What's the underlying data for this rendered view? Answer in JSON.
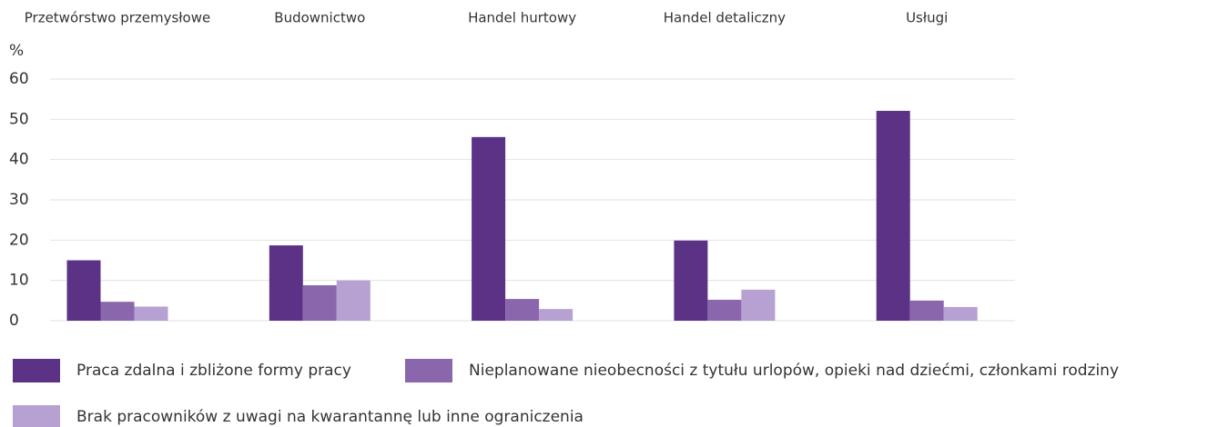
{
  "chart_data": {
    "type": "bar",
    "y_unit": "%",
    "categories": [
      "Przetwórstwo przemysłowe",
      "Budownictwo",
      "Handel hurtowy",
      "Handel detaliczny",
      "Usługi"
    ],
    "series": [
      {
        "name": "Praca zdalna i zbliżone formy pracy",
        "color": "#5b3285",
        "values": [
          15,
          18.7,
          45.6,
          19.9,
          52.1
        ]
      },
      {
        "name": "Nieplanowane nieobecności z tytułu urlopów, opieki nad dziećmi, członkami rodziny",
        "color": "#8a67ad",
        "values": [
          4.7,
          8.8,
          5.4,
          5.2,
          5
        ]
      },
      {
        "name": "Brak pracowników z uwagi na kwarantannę lub inne ograniczenia",
        "color": "#b7a0d2",
        "values": [
          3.5,
          10,
          2.9,
          7.7,
          3.4
        ]
      }
    ],
    "ylim": [
      0,
      60
    ],
    "yticks": [
      0,
      10,
      20,
      30,
      40,
      50,
      60
    ],
    "grid": true
  }
}
